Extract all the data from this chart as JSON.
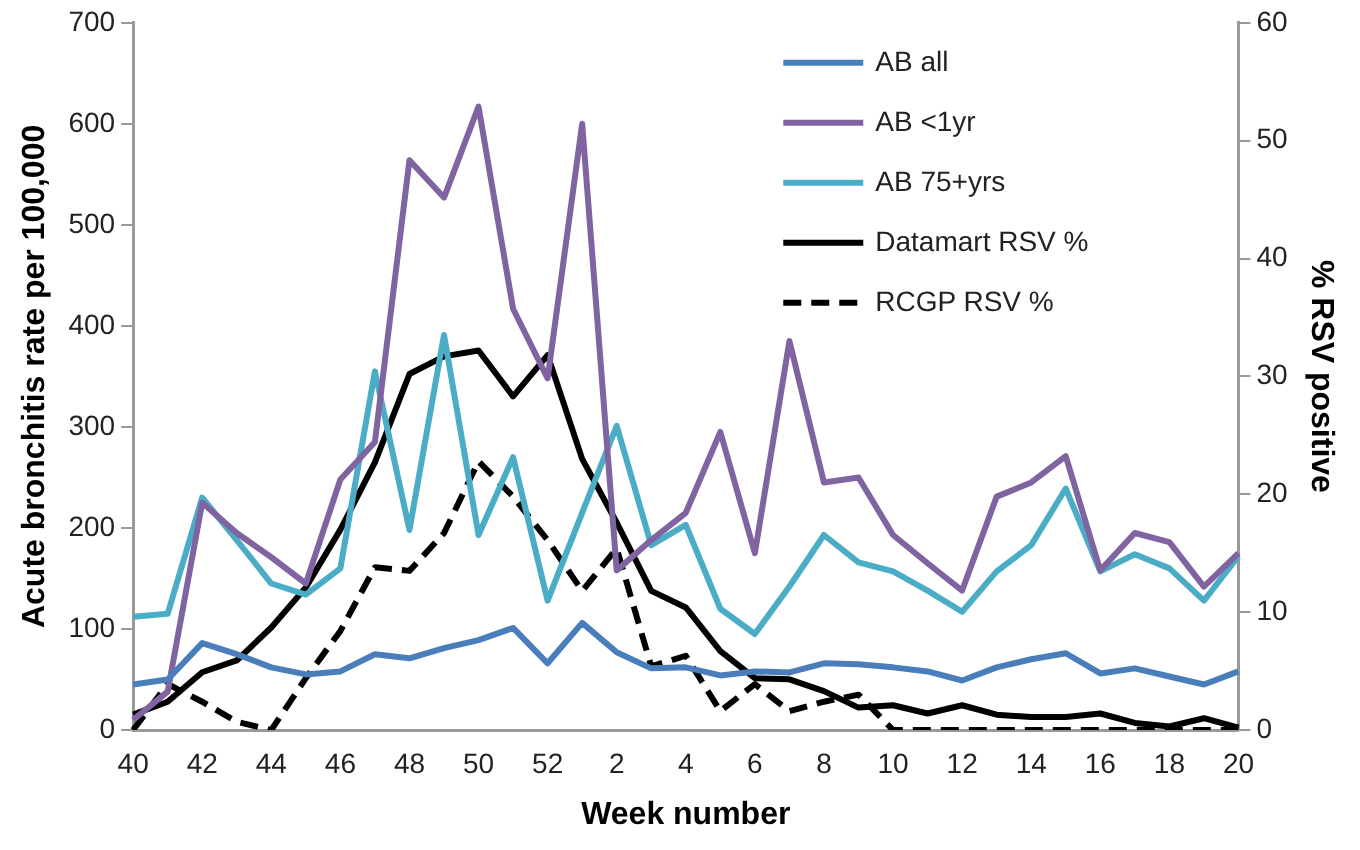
{
  "chart_data": {
    "type": "line",
    "xlabel": "Week number",
    "ylabel": "Acute bronchitis rate per 100,000",
    "y2label": "% RSV positive",
    "categories": [
      "40",
      null,
      "42",
      null,
      "44",
      null,
      "46",
      null,
      "48",
      null,
      "50",
      null,
      "52",
      null,
      "2",
      null,
      "4",
      null,
      "6",
      null,
      "8",
      null,
      "10",
      null,
      "12",
      null,
      "14",
      null,
      "16",
      null,
      "18",
      null,
      "20"
    ],
    "ylim": [
      0,
      700
    ],
    "yticks": [
      0,
      100,
      200,
      300,
      400,
      500,
      600,
      700
    ],
    "y2lim": [
      0,
      60
    ],
    "y2ticks": [
      0,
      10,
      20,
      30,
      40,
      50,
      60
    ],
    "grid": false,
    "legend": "top right",
    "marker": "none",
    "series": [
      {
        "name": "AB all",
        "color": "#4a7ebb",
        "values": [
          45,
          50,
          86,
          75,
          62,
          55,
          58,
          75,
          71,
          81,
          89,
          101,
          66,
          106,
          77,
          61,
          62,
          54,
          58,
          57,
          66,
          65,
          62,
          58,
          49,
          62,
          70,
          76,
          56,
          61,
          53,
          45,
          58
        ]
      },
      {
        "name": "AB <1yr",
        "color": "#8064a2",
        "values": [
          10,
          38,
          225,
          195,
          171,
          145,
          248,
          285,
          564,
          527,
          617,
          417,
          348,
          600,
          158,
          188,
          215,
          295,
          175,
          385,
          245,
          250,
          193,
          165,
          138,
          231,
          245,
          271,
          158,
          195,
          186,
          142,
          175
        ]
      },
      {
        "name": "AB 75+yrs",
        "color": "#4bacc6",
        "values": [
          112,
          115,
          230,
          188,
          145,
          134,
          160,
          355,
          198,
          391,
          193,
          270,
          128,
          215,
          301,
          183,
          203,
          120,
          95,
          142,
          193,
          166,
          157,
          138,
          117,
          157,
          183,
          239,
          157,
          174,
          160,
          128,
          172
        ]
      },
      {
        "name": "Datamart RSV %",
        "color": "#000000",
        "axis": "y2",
        "line_style": "solid",
        "values": [
          1.3,
          2.4,
          4.9,
          5.9,
          8.7,
          12.1,
          17,
          22.7,
          30.2,
          31.7,
          32.2,
          28.3,
          31.8,
          23,
          17.6,
          11.8,
          10.4,
          6.7,
          4.4,
          4.3,
          3.3,
          1.9,
          2.1,
          1.4,
          2.1,
          1.3,
          1.1,
          1.1,
          1.4,
          0.6,
          0.3,
          1,
          0.2
        ]
      },
      {
        "name": "RCGP RSV %",
        "color": "#000000",
        "axis": "y2",
        "line_style": "dashed",
        "values": [
          0,
          3.9,
          2.4,
          0.7,
          0,
          4.4,
          8.4,
          13.8,
          13.5,
          16.7,
          22.8,
          19.8,
          16.1,
          11.8,
          15.4,
          5.4,
          6.3,
          1.6,
          3.9,
          1.6,
          2.4,
          3,
          0,
          0,
          0,
          0,
          0,
          0,
          0,
          0,
          0,
          0,
          0
        ]
      }
    ]
  }
}
